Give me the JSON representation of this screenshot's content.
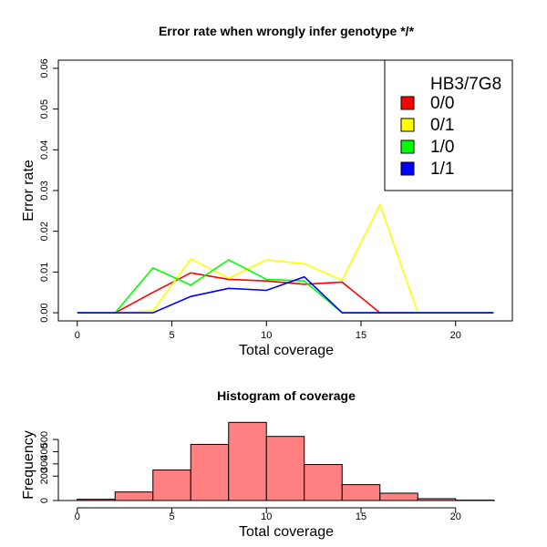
{
  "chart_data": [
    {
      "type": "line",
      "title": "Error rate when wrongly infer genotype */*",
      "xlabel": "Total coverage",
      "ylabel": "Error rate",
      "xlim": [
        -1,
        23
      ],
      "ylim": [
        -0.002,
        0.062
      ],
      "xticks": [
        0,
        5,
        10,
        15,
        20
      ],
      "xtick_labels": [
        "0",
        "5",
        "10",
        "15",
        "20"
      ],
      "yticks": [
        0,
        0.01,
        0.02,
        0.03,
        0.04,
        0.05,
        0.06
      ],
      "ytick_labels": [
        "0.00",
        "0.01",
        "0.02",
        "0.03",
        "0.04",
        "0.05",
        "0.06"
      ],
      "legend": {
        "title": "HB3/7G8",
        "placement": "top-right"
      },
      "series": [
        {
          "name": "0/0",
          "color": "#ff0000",
          "x": [
            0,
            2,
            4,
            6,
            8,
            10,
            12,
            14,
            16,
            18,
            20,
            22
          ],
          "y": [
            0,
            0,
            0.005,
            0.0098,
            0.0082,
            0.0078,
            0.007,
            0.0075,
            0,
            0,
            0,
            0
          ]
        },
        {
          "name": "0/1",
          "color": "#ffff00",
          "x": [
            0,
            2,
            4,
            6,
            8,
            10,
            12,
            14,
            16,
            18,
            20,
            22
          ],
          "y": [
            0,
            0,
            0.0005,
            0.0132,
            0.0085,
            0.013,
            0.012,
            0.008,
            0.0265,
            0,
            0,
            0
          ]
        },
        {
          "name": "1/0",
          "color": "#00ff00",
          "x": [
            0,
            2,
            4,
            6,
            8,
            10,
            12,
            14,
            16,
            18,
            20,
            22
          ],
          "y": [
            0,
            0,
            0.011,
            0.0068,
            0.013,
            0.0082,
            0.0078,
            0,
            0,
            0,
            0,
            0
          ]
        },
        {
          "name": "1/1",
          "color": "#0000ff",
          "x": [
            0,
            2,
            4,
            6,
            8,
            10,
            12,
            14,
            16,
            18,
            20,
            22
          ],
          "y": [
            0,
            0,
            0,
            0.004,
            0.006,
            0.0055,
            0.0088,
            0,
            0,
            0,
            0,
            0
          ]
        }
      ]
    },
    {
      "type": "bar",
      "title": "Histogram of coverage",
      "xlabel": "Total coverage",
      "ylabel": "Frequency",
      "xlim": [
        -1,
        23
      ],
      "ylim": [
        0,
        620
      ],
      "xticks": [
        0,
        5,
        10,
        15,
        20
      ],
      "xtick_labels": [
        "0",
        "5",
        "10",
        "15",
        "20"
      ],
      "yticks": [
        0,
        200,
        300,
        400,
        500
      ],
      "ytick_labels": [
        "0",
        "200",
        "300",
        "400",
        "500"
      ],
      "bar_color": "#ff8080",
      "bins": [
        {
          "start": 0,
          "end": 2,
          "value": 10
        },
        {
          "start": 2,
          "end": 4,
          "value": 70
        },
        {
          "start": 4,
          "end": 6,
          "value": 250
        },
        {
          "start": 6,
          "end": 8,
          "value": 460
        },
        {
          "start": 8,
          "end": 10,
          "value": 640
        },
        {
          "start": 10,
          "end": 12,
          "value": 525
        },
        {
          "start": 12,
          "end": 14,
          "value": 295
        },
        {
          "start": 14,
          "end": 16,
          "value": 130
        },
        {
          "start": 16,
          "end": 18,
          "value": 60
        },
        {
          "start": 18,
          "end": 20,
          "value": 15
        },
        {
          "start": 20,
          "end": 22,
          "value": 3
        }
      ]
    }
  ]
}
